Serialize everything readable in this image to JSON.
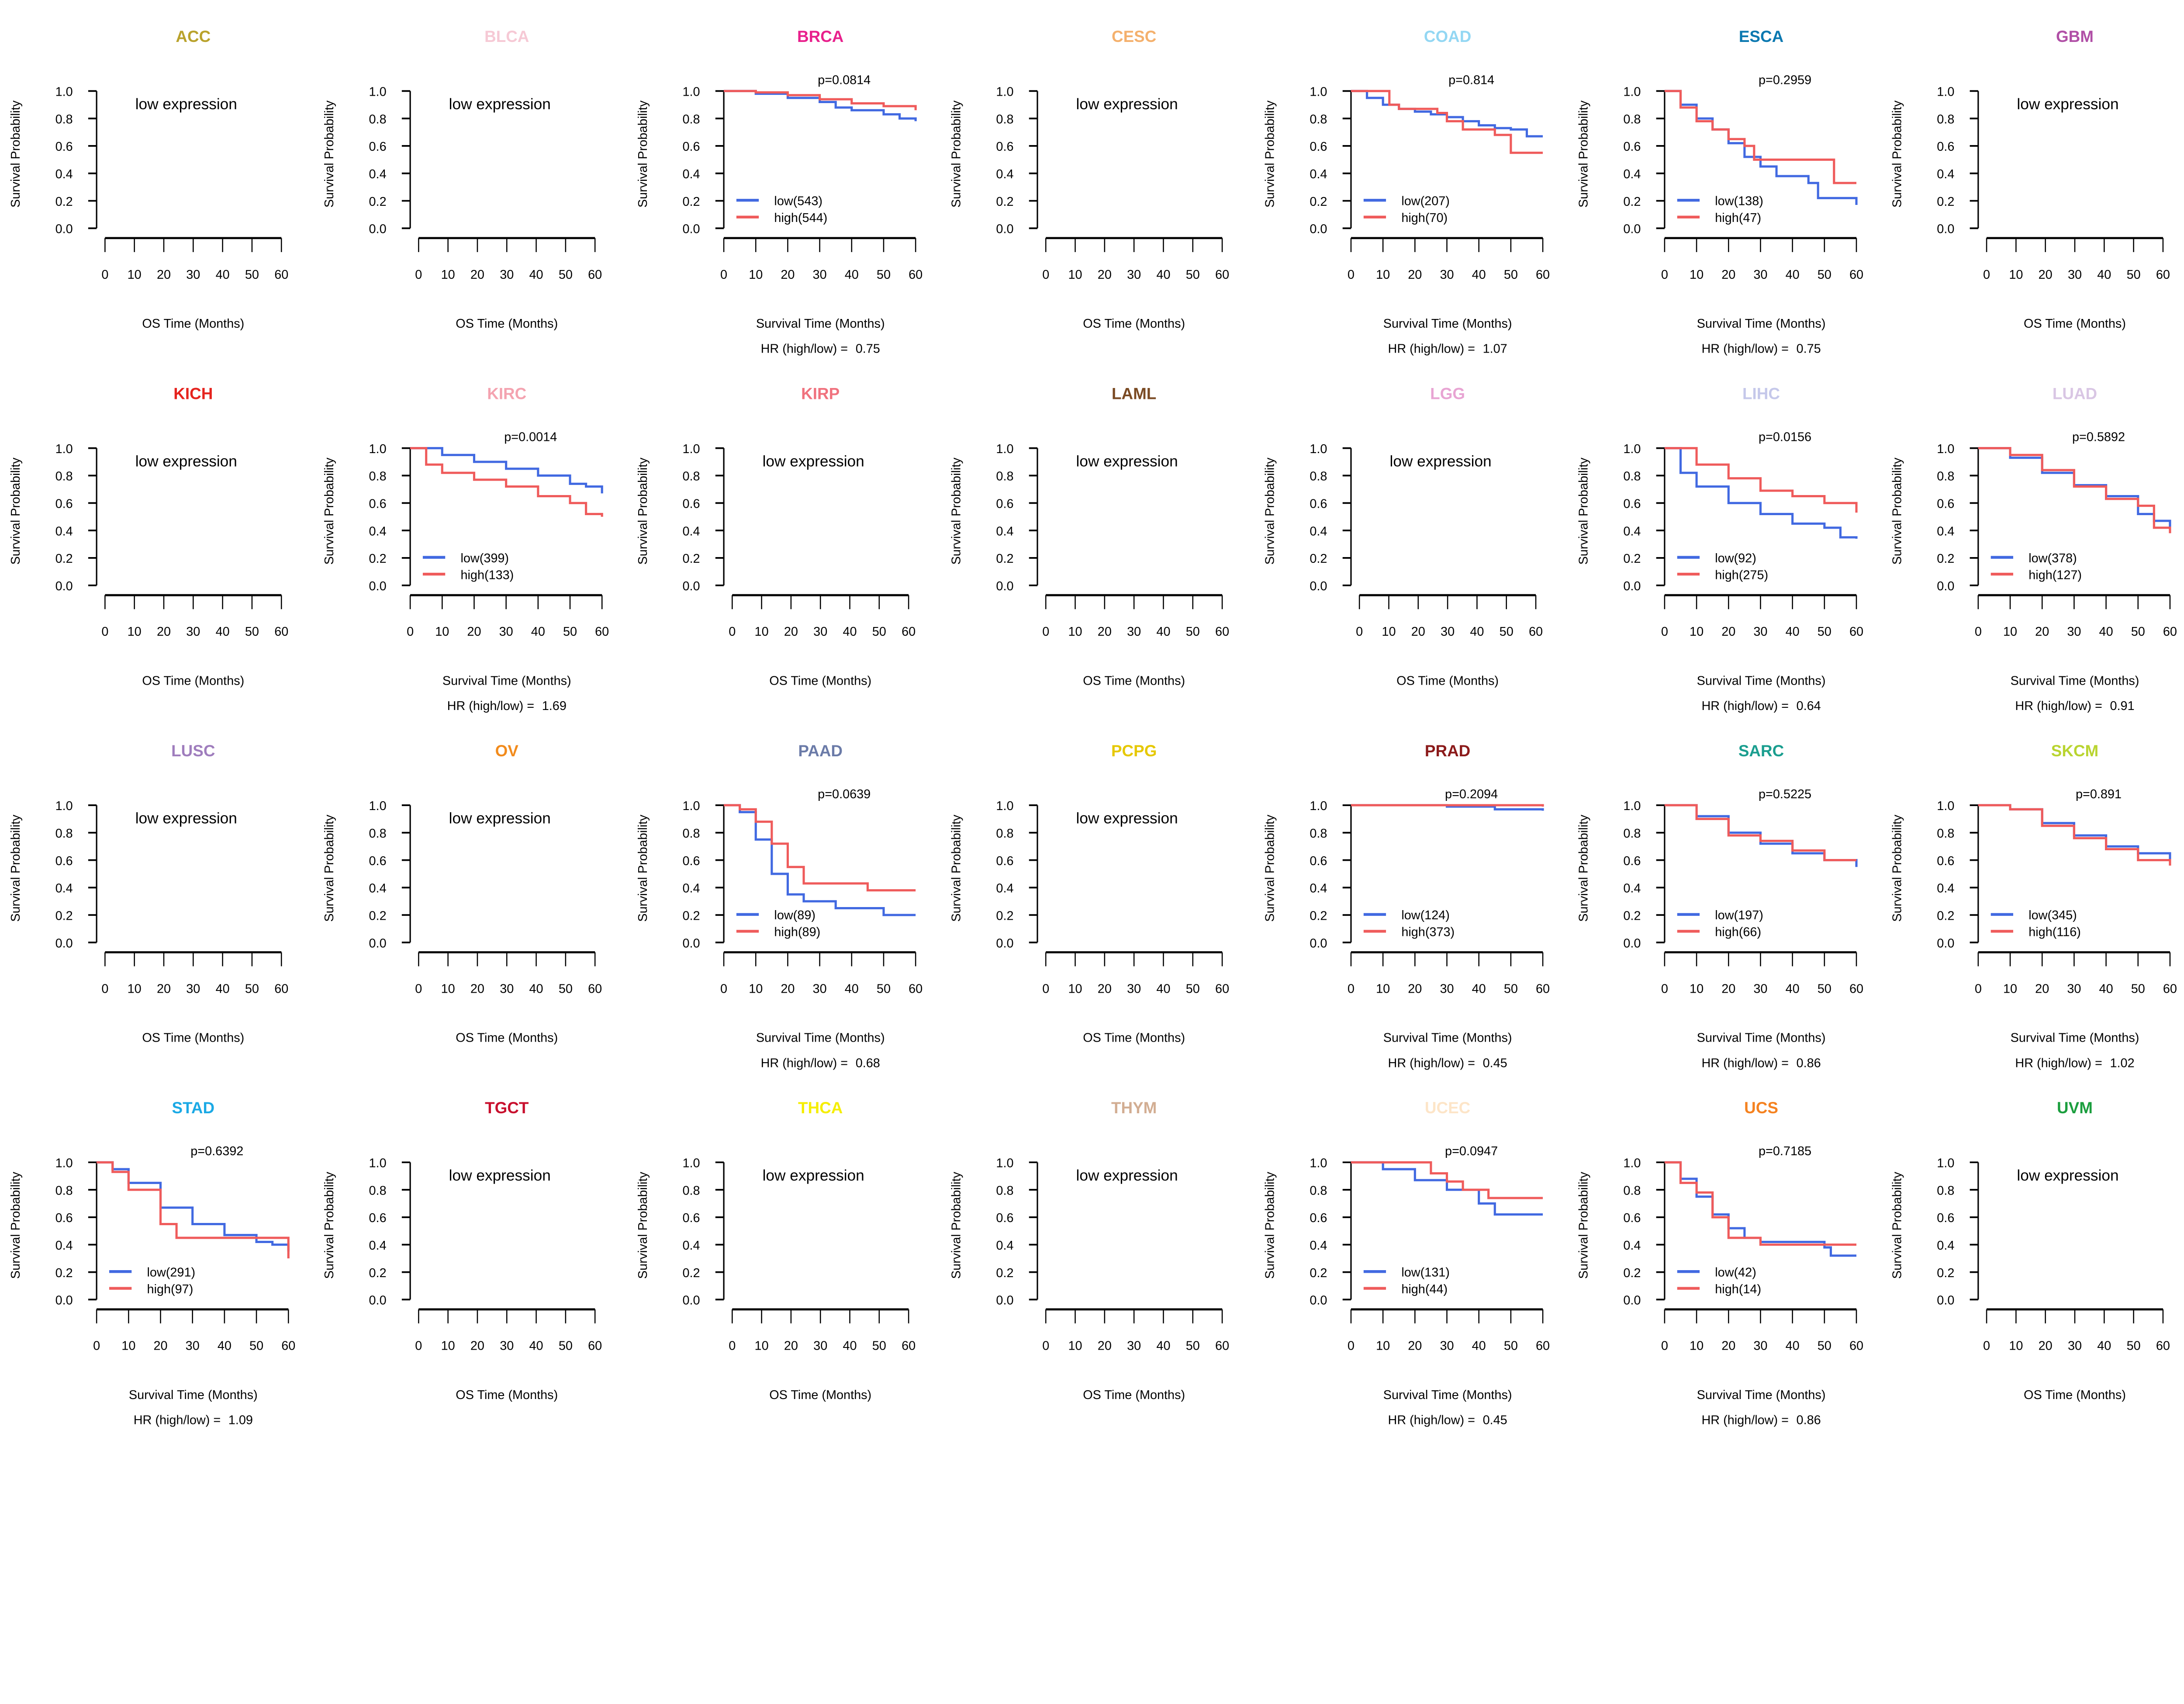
{
  "chart_data": {
    "type": "line",
    "subtype": "kaplan-meier grid",
    "ylabel": "Survival Probability",
    "xlabel_data": "Survival Time (Months)",
    "xlabel_empty": "OS Time (Months)",
    "empty_text": "low expression",
    "hr_prefix": "HR (high/low) = ",
    "xticks": [
      "0",
      "10",
      "20",
      "30",
      "40",
      "50",
      "60"
    ],
    "yticks": [
      "0.0",
      "0.2",
      "0.4",
      "0.6",
      "0.8",
      "1.0"
    ],
    "xlim": [
      0,
      60
    ],
    "ylim": [
      0,
      1
    ],
    "legend_placement": "bottom-left",
    "series_colors": {
      "low": "#4169e1",
      "high": "#ef5b5b"
    },
    "panels": [
      {
        "title": "ACC",
        "color": "#b9a22c",
        "empty": true
      },
      {
        "title": "BLCA",
        "color": "#f6c9d5",
        "empty": true
      },
      {
        "title": "BRCA",
        "color": "#e8208c",
        "p": "p=0.0814",
        "hr": "0.75",
        "low_label": "low(543)",
        "high_label": "high(544)",
        "low": [
          [
            0,
            1
          ],
          [
            10,
            0.98
          ],
          [
            20,
            0.95
          ],
          [
            30,
            0.92
          ],
          [
            35,
            0.88
          ],
          [
            40,
            0.86
          ],
          [
            50,
            0.83
          ],
          [
            55,
            0.8
          ],
          [
            60,
            0.78
          ]
        ],
        "high": [
          [
            0,
            1
          ],
          [
            10,
            0.99
          ],
          [
            20,
            0.97
          ],
          [
            30,
            0.94
          ],
          [
            40,
            0.91
          ],
          [
            50,
            0.89
          ],
          [
            60,
            0.86
          ]
        ]
      },
      {
        "title": "CESC",
        "color": "#f4b06c",
        "empty": true
      },
      {
        "title": "COAD",
        "color": "#93d7f3",
        "p": "p=0.814",
        "hr": "1.07",
        "low_label": "low(207)",
        "high_label": "high(70)",
        "low": [
          [
            0,
            1
          ],
          [
            5,
            0.95
          ],
          [
            10,
            0.9
          ],
          [
            15,
            0.87
          ],
          [
            20,
            0.85
          ],
          [
            25,
            0.83
          ],
          [
            30,
            0.81
          ],
          [
            35,
            0.78
          ],
          [
            40,
            0.75
          ],
          [
            45,
            0.73
          ],
          [
            50,
            0.72
          ],
          [
            55,
            0.67
          ],
          [
            60,
            0.67
          ]
        ],
        "high": [
          [
            0,
            1
          ],
          [
            10,
            1
          ],
          [
            12,
            0.9
          ],
          [
            15,
            0.87
          ],
          [
            27,
            0.84
          ],
          [
            30,
            0.78
          ],
          [
            35,
            0.72
          ],
          [
            45,
            0.68
          ],
          [
            50,
            0.55
          ],
          [
            60,
            0.55
          ]
        ]
      },
      {
        "title": "ESCA",
        "color": "#0a78b0",
        "p": "p=0.2959",
        "hr": "0.75",
        "low_label": "low(138)",
        "high_label": "high(47)",
        "low": [
          [
            0,
            1
          ],
          [
            5,
            0.9
          ],
          [
            10,
            0.8
          ],
          [
            15,
            0.72
          ],
          [
            20,
            0.62
          ],
          [
            25,
            0.52
          ],
          [
            30,
            0.45
          ],
          [
            35,
            0.38
          ],
          [
            45,
            0.33
          ],
          [
            48,
            0.22
          ],
          [
            58,
            0.22
          ],
          [
            60,
            0.17
          ]
        ],
        "high": [
          [
            0,
            1
          ],
          [
            5,
            0.88
          ],
          [
            10,
            0.78
          ],
          [
            15,
            0.72
          ],
          [
            20,
            0.65
          ],
          [
            25,
            0.6
          ],
          [
            28,
            0.5
          ],
          [
            53,
            0.5
          ],
          [
            53,
            0.33
          ],
          [
            60,
            0.33
          ]
        ]
      },
      {
        "title": "GBM",
        "color": "#b04fa6",
        "empty": true
      },
      {
        "title": "KICH",
        "color": "#e5231e",
        "empty": true
      },
      {
        "title": "KIRC",
        "color": "#f4a3b0",
        "p": "p=0.0014",
        "hr": "1.69",
        "low_label": "low(399)",
        "high_label": "high(133)",
        "low": [
          [
            0,
            1
          ],
          [
            10,
            0.95
          ],
          [
            20,
            0.9
          ],
          [
            30,
            0.85
          ],
          [
            40,
            0.8
          ],
          [
            50,
            0.74
          ],
          [
            55,
            0.72
          ],
          [
            60,
            0.67
          ]
        ],
        "high": [
          [
            0,
            1
          ],
          [
            5,
            0.88
          ],
          [
            10,
            0.82
          ],
          [
            20,
            0.77
          ],
          [
            30,
            0.72
          ],
          [
            40,
            0.65
          ],
          [
            50,
            0.6
          ],
          [
            55,
            0.52
          ],
          [
            60,
            0.5
          ]
        ]
      },
      {
        "title": "KIRP",
        "color": "#f0727e",
        "empty": true
      },
      {
        "title": "LAML",
        "color": "#7a4a23",
        "empty": true
      },
      {
        "title": "LGG",
        "color": "#e8a4d3",
        "empty": true
      },
      {
        "title": "LIHC",
        "color": "#c5c8ea",
        "p": "p=0.0156",
        "hr": "0.64",
        "low_label": "low(92)",
        "high_label": "high(275)",
        "low": [
          [
            0,
            1
          ],
          [
            5,
            0.82
          ],
          [
            10,
            0.72
          ],
          [
            20,
            0.6
          ],
          [
            30,
            0.52
          ],
          [
            40,
            0.45
          ],
          [
            50,
            0.42
          ],
          [
            55,
            0.35
          ],
          [
            60,
            0.34
          ]
        ],
        "high": [
          [
            0,
            1
          ],
          [
            10,
            0.88
          ],
          [
            20,
            0.78
          ],
          [
            30,
            0.69
          ],
          [
            40,
            0.65
          ],
          [
            50,
            0.6
          ],
          [
            60,
            0.53
          ]
        ]
      },
      {
        "title": "LUAD",
        "color": "#d9c6e4",
        "p": "p=0.5892",
        "hr": "0.91",
        "low_label": "low(378)",
        "high_label": "high(127)",
        "low": [
          [
            0,
            1
          ],
          [
            10,
            0.93
          ],
          [
            20,
            0.82
          ],
          [
            30,
            0.73
          ],
          [
            40,
            0.65
          ],
          [
            50,
            0.52
          ],
          [
            55,
            0.47
          ],
          [
            60,
            0.42
          ]
        ],
        "high": [
          [
            0,
            1
          ],
          [
            10,
            0.95
          ],
          [
            20,
            0.84
          ],
          [
            30,
            0.72
          ],
          [
            40,
            0.63
          ],
          [
            50,
            0.58
          ],
          [
            55,
            0.42
          ],
          [
            60,
            0.38
          ]
        ]
      },
      {
        "title": "LUSC",
        "color": "#9f7dbd",
        "empty": true
      },
      {
        "title": "OV",
        "color": "#f28b1c",
        "empty": true
      },
      {
        "title": "PAAD",
        "color": "#6b7ba8",
        "p": "p=0.0639",
        "hr": "0.68",
        "low_label": "low(89)",
        "high_label": "high(89)",
        "low": [
          [
            0,
            1
          ],
          [
            5,
            0.95
          ],
          [
            10,
            0.75
          ],
          [
            15,
            0.5
          ],
          [
            20,
            0.35
          ],
          [
            25,
            0.3
          ],
          [
            35,
            0.25
          ],
          [
            50,
            0.2
          ],
          [
            60,
            0.2
          ]
        ],
        "high": [
          [
            0,
            1
          ],
          [
            5,
            0.97
          ],
          [
            10,
            0.88
          ],
          [
            15,
            0.72
          ],
          [
            20,
            0.55
          ],
          [
            25,
            0.43
          ],
          [
            45,
            0.43
          ],
          [
            45,
            0.38
          ],
          [
            60,
            0.38
          ]
        ]
      },
      {
        "title": "PCPG",
        "color": "#e6c800",
        "empty": true
      },
      {
        "title": "PRAD",
        "color": "#8b1a1a",
        "p": "p=0.2094",
        "hr": "0.45",
        "low_label": "low(124)",
        "high_label": "high(373)",
        "low": [
          [
            0,
            1
          ],
          [
            30,
            0.99
          ],
          [
            45,
            0.97
          ],
          [
            60,
            0.96
          ]
        ],
        "high": [
          [
            0,
            1
          ],
          [
            60,
            0.99
          ]
        ]
      },
      {
        "title": "SARC",
        "color": "#1a9e8f",
        "p": "p=0.5225",
        "hr": "0.86",
        "low_label": "low(197)",
        "high_label": "high(66)",
        "low": [
          [
            0,
            1
          ],
          [
            10,
            0.92
          ],
          [
            20,
            0.8
          ],
          [
            30,
            0.72
          ],
          [
            40,
            0.65
          ],
          [
            50,
            0.6
          ],
          [
            60,
            0.55
          ]
        ],
        "high": [
          [
            0,
            1
          ],
          [
            10,
            0.9
          ],
          [
            20,
            0.78
          ],
          [
            30,
            0.74
          ],
          [
            40,
            0.67
          ],
          [
            50,
            0.6
          ],
          [
            60,
            0.6
          ]
        ]
      },
      {
        "title": "SKCM",
        "color": "#b9d430",
        "p": "p=0.891",
        "hr": "1.02",
        "low_label": "low(345)",
        "high_label": "high(116)",
        "low": [
          [
            0,
            1
          ],
          [
            10,
            0.97
          ],
          [
            20,
            0.87
          ],
          [
            30,
            0.78
          ],
          [
            40,
            0.7
          ],
          [
            50,
            0.65
          ],
          [
            60,
            0.6
          ]
        ],
        "high": [
          [
            0,
            1
          ],
          [
            10,
            0.97
          ],
          [
            20,
            0.85
          ],
          [
            30,
            0.76
          ],
          [
            40,
            0.68
          ],
          [
            50,
            0.6
          ],
          [
            60,
            0.56
          ]
        ]
      },
      {
        "title": "STAD",
        "color": "#1ba9e5",
        "p": "p=0.6392",
        "hr": "1.09",
        "low_label": "low(291)",
        "high_label": "high(97)",
        "low": [
          [
            0,
            1
          ],
          [
            5,
            0.95
          ],
          [
            10,
            0.85
          ],
          [
            20,
            0.67
          ],
          [
            30,
            0.55
          ],
          [
            40,
            0.47
          ],
          [
            50,
            0.42
          ],
          [
            55,
            0.4
          ],
          [
            60,
            0.35
          ]
        ],
        "high": [
          [
            0,
            1
          ],
          [
            5,
            0.93
          ],
          [
            10,
            0.8
          ],
          [
            20,
            0.55
          ],
          [
            25,
            0.45
          ],
          [
            60,
            0.45
          ],
          [
            60,
            0.3
          ]
        ]
      },
      {
        "title": "TGCT",
        "color": "#c8102e",
        "empty": true
      },
      {
        "title": "THCA",
        "color": "#f5ee00",
        "empty": true
      },
      {
        "title": "THYM",
        "color": "#d2ad92",
        "empty": true
      },
      {
        "title": "UCEC",
        "color": "#fde5c8",
        "p": "p=0.0947",
        "hr": "0.45",
        "low_label": "low(131)",
        "high_label": "high(44)",
        "low": [
          [
            0,
            1
          ],
          [
            10,
            0.95
          ],
          [
            20,
            0.87
          ],
          [
            30,
            0.8
          ],
          [
            40,
            0.7
          ],
          [
            45,
            0.62
          ],
          [
            60,
            0.62
          ]
        ],
        "high": [
          [
            0,
            1
          ],
          [
            20,
            1
          ],
          [
            25,
            0.92
          ],
          [
            30,
            0.86
          ],
          [
            35,
            0.8
          ],
          [
            43,
            0.74
          ],
          [
            60,
            0.74
          ]
        ]
      },
      {
        "title": "UCS",
        "color": "#f58220",
        "p": "p=0.7185",
        "hr": "0.86",
        "low_label": "low(42)",
        "high_label": "high(14)",
        "low": [
          [
            0,
            1
          ],
          [
            5,
            0.88
          ],
          [
            10,
            0.75
          ],
          [
            15,
            0.62
          ],
          [
            20,
            0.52
          ],
          [
            25,
            0.45
          ],
          [
            30,
            0.42
          ],
          [
            50,
            0.38
          ],
          [
            52,
            0.32
          ],
          [
            60,
            0.32
          ]
        ],
        "high": [
          [
            0,
            1
          ],
          [
            5,
            0.85
          ],
          [
            10,
            0.78
          ],
          [
            15,
            0.6
          ],
          [
            20,
            0.45
          ],
          [
            30,
            0.4
          ],
          [
            60,
            0.4
          ]
        ]
      },
      {
        "title": "UVM",
        "color": "#1b9e3e",
        "empty": true
      }
    ]
  }
}
